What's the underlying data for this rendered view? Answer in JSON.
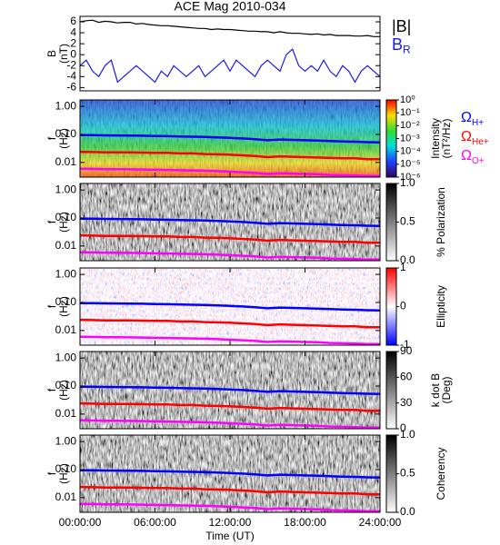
{
  "chart_data": [
    {
      "type": "line",
      "title": "ACE Mag 2010-034",
      "ylabel": [
        "B",
        "(nT)"
      ],
      "x": [
        0,
        0.5,
        1,
        1.5,
        2,
        2.5,
        3,
        3.5,
        4,
        4.5,
        5,
        5.5,
        6,
        6.5,
        7,
        7.5,
        8,
        8.5,
        9,
        9.5,
        10,
        10.5,
        11,
        11.5,
        12,
        12.5,
        13,
        13.5,
        14,
        14.5,
        15,
        15.5,
        16,
        16.5,
        17,
        17.5,
        18,
        18.5,
        19,
        19.5,
        20,
        20.5,
        21,
        21.5,
        22,
        22.5,
        23,
        23.5,
        24
      ],
      "xlim": [
        0,
        24
      ],
      "ylim": [
        -6.6,
        7
      ],
      "yticks": [
        -6,
        -4,
        -2,
        0,
        2,
        4,
        6
      ],
      "series": [
        {
          "name": "|B|",
          "color": "#000000",
          "values": [
            6.0,
            6.2,
            6.3,
            5.9,
            6.1,
            6.0,
            5.8,
            5.9,
            5.9,
            5.6,
            5.7,
            5.5,
            5.4,
            5.3,
            5.3,
            5.2,
            5.1,
            5.0,
            4.9,
            4.8,
            4.8,
            4.6,
            4.7,
            4.6,
            4.6,
            4.5,
            4.4,
            4.3,
            4.3,
            4.2,
            4.2,
            4.0,
            4.2,
            4.0,
            3.9,
            3.9,
            3.8,
            3.7,
            3.8,
            3.6,
            3.7,
            3.5,
            3.5,
            3.5,
            3.4,
            3.4,
            3.5,
            3.3,
            3.3
          ]
        },
        {
          "name": "B",
          "subscript": "R",
          "color": "#1a1ae6",
          "values": [
            -2,
            -1,
            -3,
            -4,
            -2,
            -1,
            -5,
            -4,
            -3,
            -2,
            -3,
            -4,
            -5,
            -3,
            -4,
            -2,
            -3,
            -4,
            -3,
            -2,
            -4,
            -3,
            -2,
            -1,
            -3,
            -1,
            -2,
            -3,
            -4,
            -2,
            -1,
            -2,
            -3,
            0,
            1,
            -2,
            -3,
            -2,
            -3,
            -1,
            -3,
            -4,
            -2,
            -3,
            -5,
            -3,
            -2,
            -3,
            -4
          ]
        }
      ]
    },
    {
      "type": "spectrogram",
      "xlabel": "Time (UT)",
      "ylabel": [
        "f",
        "(Hz)"
      ],
      "log_scale": true,
      "x": [
        0,
        1,
        2,
        3,
        4,
        5,
        6,
        7,
        8,
        9,
        10,
        11,
        12,
        13,
        14,
        15,
        16,
        17,
        18,
        19,
        20,
        21,
        22,
        23,
        24
      ],
      "xlim": [
        0,
        24
      ],
      "xticks": [
        {
          "value": 0,
          "label": "00:00:00"
        },
        {
          "value": 6,
          "label": "06:00:00"
        },
        {
          "value": 12,
          "label": "12:00:00"
        },
        {
          "value": 18,
          "label": "18:00:00"
        },
        {
          "value": 24,
          "label": "24:00:00"
        }
      ],
      "ylim": [
        0.003,
        1.7
      ],
      "yticks": [
        {
          "value": 0.01,
          "label": "0.01"
        },
        {
          "value": 0.1,
          "label": "0.10"
        },
        {
          "value": 1,
          "label": "1.00"
        }
      ],
      "series": [
        {
          "name": "Ω",
          "subscript": "H+",
          "color": "#0000ff",
          "values": [
            0.095,
            0.094,
            0.093,
            0.092,
            0.091,
            0.09,
            0.088,
            0.087,
            0.085,
            0.083,
            0.081,
            0.078,
            0.075,
            0.072,
            0.068,
            0.062,
            0.066,
            0.064,
            0.062,
            0.06,
            0.058,
            0.056,
            0.055,
            0.053,
            0.052
          ]
        },
        {
          "name": "Ω",
          "subscript": "He+",
          "color": "#ff0000",
          "values": [
            0.024,
            0.0235,
            0.023,
            0.023,
            0.023,
            0.0225,
            0.022,
            0.022,
            0.021,
            0.021,
            0.02,
            0.0195,
            0.019,
            0.018,
            0.017,
            0.0155,
            0.0165,
            0.016,
            0.0155,
            0.015,
            0.0145,
            0.014,
            0.014,
            0.013,
            0.013
          ]
        },
        {
          "name": "Ω",
          "subscript": "O+",
          "color": "#ff00ff",
          "values": [
            0.006,
            0.0059,
            0.0058,
            0.0058,
            0.0057,
            0.0056,
            0.0055,
            0.0054,
            0.0053,
            0.0052,
            0.0051,
            0.0049,
            0.0047,
            0.0045,
            0.0043,
            0.0039,
            0.0041,
            0.004,
            0.0039,
            0.0038,
            0.0036,
            0.0035,
            0.0034,
            0.0033,
            0.0033
          ]
        }
      ],
      "panels": [
        {
          "colormap": "rainbow",
          "colorbar_label": [
            "Intensity",
            "(nT²/Hz)"
          ],
          "clog": true,
          "clim": [
            1e-06,
            1
          ],
          "cticks": [
            {
              "value": 1,
              "label": "10⁰"
            },
            {
              "value": 0.1,
              "label": "10⁻¹"
            },
            {
              "value": 0.01,
              "label": "10⁻²"
            },
            {
              "value": 0.001,
              "label": "10⁻³"
            },
            {
              "value": 0.0001,
              "label": "10⁻⁴"
            },
            {
              "value": 1e-05,
              "label": "10⁻⁵"
            },
            {
              "value": 1e-06,
              "label": "10⁻⁶"
            }
          ]
        },
        {
          "colormap": "gray",
          "colorbar_label": [
            "% Polarization"
          ],
          "clim": [
            0,
            1
          ],
          "cticks": [
            {
              "value": 0,
              "label": "0.0"
            },
            {
              "value": 0.5,
              "label": "0.5"
            },
            {
              "value": 1,
              "label": "1.0"
            }
          ]
        },
        {
          "colormap": "red-blue",
          "colorbar_label": [
            "Ellipticity"
          ],
          "clim": [
            -1,
            1
          ],
          "cticks": [
            -1,
            0,
            1
          ]
        },
        {
          "colormap": "gray",
          "colorbar_label": [
            "k dot B",
            "(Deg)"
          ],
          "clim": [
            0,
            90
          ],
          "cticks": [
            0,
            30,
            60,
            90
          ]
        },
        {
          "colormap": "gray",
          "colorbar_label": [
            "Coherency"
          ],
          "clim": [
            0,
            1
          ],
          "cticks": [
            {
              "value": 0,
              "label": "0.0"
            },
            {
              "value": 0.5,
              "label": "0.5"
            },
            {
              "value": 1,
              "label": "1.0"
            }
          ]
        }
      ]
    }
  ]
}
